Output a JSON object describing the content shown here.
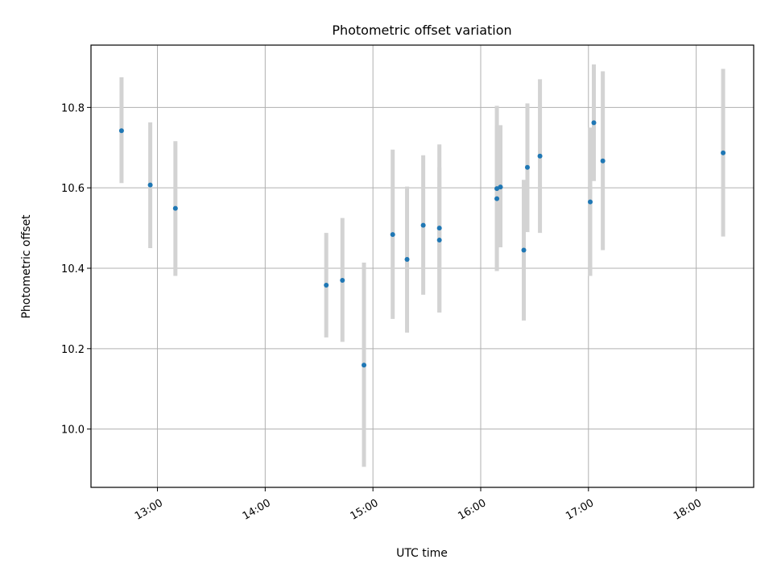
{
  "chart_data": {
    "type": "scatter",
    "title": "Photometric offset variation",
    "xlabel": "UTC time",
    "ylabel": "Photometric offset",
    "grid": true,
    "xlim": [
      "12:23",
      "18:32"
    ],
    "ylim": [
      9.855,
      10.955
    ],
    "x_ticks": [
      "13:00",
      "14:00",
      "15:00",
      "16:00",
      "17:00",
      "18:00"
    ],
    "y_ticks": [
      "10.0",
      "10.2",
      "10.4",
      "10.6",
      "10.8"
    ],
    "colors": {
      "marker": "#1f77b4",
      "errorbar": "#d3d3d3",
      "grid": "#b0b0b0"
    },
    "series": [
      {
        "points": [
          {
            "x": "12:40",
            "y": 10.742,
            "low": 10.612,
            "high": 10.875
          },
          {
            "x": "12:56",
            "y": 10.607,
            "low": 10.45,
            "high": 10.763
          },
          {
            "x": "13:10",
            "y": 10.549,
            "low": 10.381,
            "high": 10.716
          },
          {
            "x": "14:34",
            "y": 10.358,
            "low": 10.228,
            "high": 10.488
          },
          {
            "x": "14:43",
            "y": 10.37,
            "low": 10.217,
            "high": 10.525
          },
          {
            "x": "14:55",
            "y": 10.159,
            "low": 9.906,
            "high": 10.414
          },
          {
            "x": "15:11",
            "y": 10.484,
            "low": 10.274,
            "high": 10.695
          },
          {
            "x": "15:19",
            "y": 10.422,
            "low": 10.24,
            "high": 10.603
          },
          {
            "x": "15:28",
            "y": 10.507,
            "low": 10.334,
            "high": 10.681
          },
          {
            "x": "15:37",
            "y": 10.47,
            "low": 10.29,
            "high": 10.651
          },
          {
            "x": "15:37",
            "y": 10.5,
            "low": 10.29,
            "high": 10.708
          },
          {
            "x": "16:09",
            "y": 10.598,
            "low": 10.393,
            "high": 10.804
          },
          {
            "x": "16:09",
            "y": 10.573,
            "low": 10.393,
            "high": 10.754
          },
          {
            "x": "16:11",
            "y": 10.602,
            "low": 10.452,
            "high": 10.756
          },
          {
            "x": "16:24",
            "y": 10.445,
            "low": 10.27,
            "high": 10.62
          },
          {
            "x": "16:26",
            "y": 10.651,
            "low": 10.49,
            "high": 10.81
          },
          {
            "x": "16:33",
            "y": 10.679,
            "low": 10.488,
            "high": 10.87
          },
          {
            "x": "17:01",
            "y": 10.565,
            "low": 10.381,
            "high": 10.75
          },
          {
            "x": "17:03",
            "y": 10.762,
            "low": 10.617,
            "high": 10.907
          },
          {
            "x": "17:08",
            "y": 10.667,
            "low": 10.445,
            "high": 10.89
          },
          {
            "x": "18:15",
            "y": 10.687,
            "low": 10.479,
            "high": 10.896
          }
        ]
      }
    ]
  }
}
